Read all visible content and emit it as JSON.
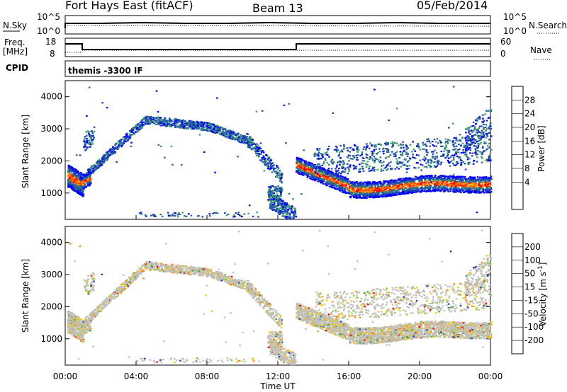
{
  "header": {
    "station": "Fort Hays East (fitACF)",
    "beam": "Beam 13",
    "date": "05/Feb/2014"
  },
  "panels": {
    "nsky": {
      "left_label": "N.Sky",
      "right_label": "N.Search",
      "left_ticks": [
        "10^5",
        "10^0"
      ],
      "right_ticks": [
        "10^5",
        "10^0"
      ]
    },
    "freq": {
      "left_label_1": "Freq.",
      "left_label_2": "[MHz]",
      "right_label": "Nave",
      "left_ticks": [
        "18",
        "8"
      ],
      "right_ticks": [
        "60",
        "0"
      ]
    },
    "cpid": {
      "label": "CPID",
      "text": "themis -3300 IF"
    }
  },
  "x_axis": {
    "label": "Time UT",
    "ticks": [
      "00:00",
      "04:00",
      "08:00",
      "12:00",
      "16:00",
      "20:00",
      "00:00"
    ]
  },
  "chart_data": [
    {
      "type": "heatmap",
      "quantity": "Power",
      "xlabel": "Time UT",
      "ylabel": "Slant Range [km]",
      "ylim": [
        180,
        4500
      ],
      "y_ticks": [
        1000,
        2000,
        3000,
        4000
      ],
      "colorbar": {
        "label": "Power [dB]",
        "ticks": [
          "28",
          "24",
          "20",
          "16",
          "12",
          "8",
          "4"
        ],
        "colors": [
          "#ff0000",
          "#ff4800",
          "#ff9000",
          "#ffc800",
          "#8fd13f",
          "#3f9f6f",
          "#276b8f",
          "#1f3fbf",
          "#0000ff"
        ]
      },
      "regions": [
        {
          "name": "early-band",
          "x_hours": [
            0.2,
            1.0
          ],
          "range_km": [
            1200,
            2300
          ]
        },
        {
          "name": "main-arc",
          "x_hours": [
            1.0,
            10.5
          ],
          "range_km": [
            1500,
            3350
          ]
        },
        {
          "name": "afternoon-echo",
          "x_hours": [
            13.0,
            24.0
          ],
          "range_km": [
            1000,
            2300
          ]
        },
        {
          "name": "noon-patch",
          "x_hours": [
            11.5,
            13.0
          ],
          "range_km": [
            200,
            1300
          ]
        }
      ]
    },
    {
      "type": "heatmap",
      "quantity": "Velocity",
      "xlabel": "Time UT",
      "ylabel": "Slant Range [km]",
      "ylim": [
        180,
        4500
      ],
      "y_ticks": [
        1000,
        2000,
        3000,
        4000
      ],
      "colorbar": {
        "label": "Velocity [m s^-1]",
        "ticks": [
          "200",
          "100",
          "50",
          "15",
          "-15",
          "-50",
          "-100",
          "-200"
        ],
        "colors": [
          "#1f3fbf",
          "#2a6fb5",
          "#3f9f3f",
          "#8fd13f",
          "#c8c8c0",
          "#ffc800",
          "#ff9000",
          "#ff4800",
          "#ff0000"
        ]
      },
      "ground_scatter_color": "#c0c0b8"
    }
  ]
}
